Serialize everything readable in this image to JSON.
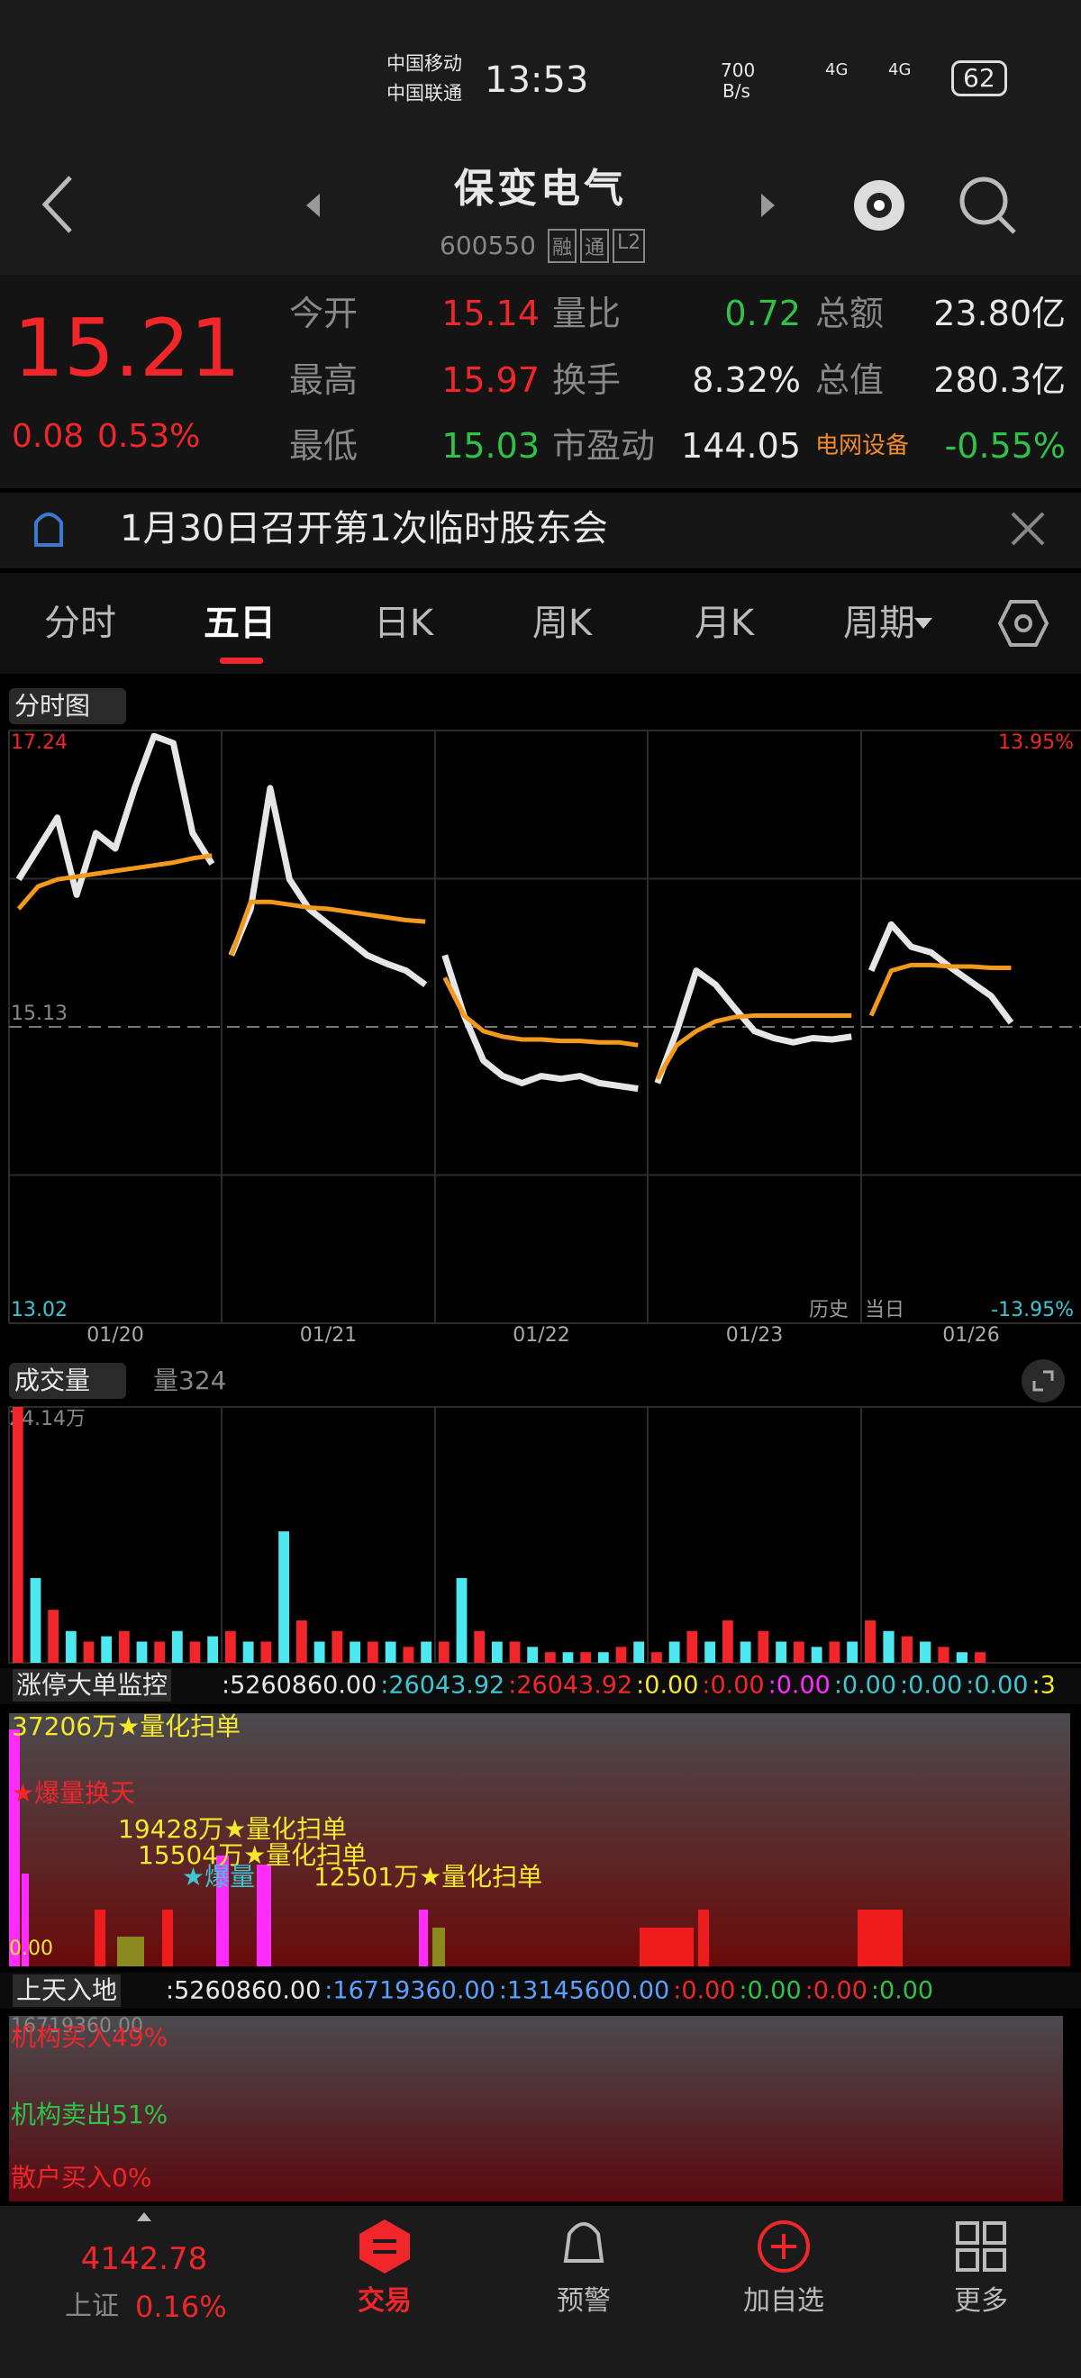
{
  "status": {
    "carrier1": "中国移动",
    "carrier2": "中国联通",
    "time": "13:53",
    "speed": "700",
    "speed_unit": "B/s",
    "net1": "4G",
    "net2": "4G",
    "battery": "62"
  },
  "header": {
    "title": "保变电气",
    "code": "600550",
    "badges": [
      "融",
      "通",
      "L2"
    ]
  },
  "quote": {
    "price": "15.21",
    "change": "0.08",
    "change_pct": "0.53%",
    "rows": [
      [
        "今开",
        "15.14",
        "量比",
        "0.72",
        "总额",
        "23.80亿"
      ],
      [
        "最高",
        "15.97",
        "换手",
        "8.32%",
        "总值",
        "280.3亿"
      ],
      [
        "最低",
        "15.03",
        "市盈动",
        "144.05",
        "电网设备",
        "-0.55%"
      ]
    ]
  },
  "notice": "1月30日召开第1次临时股东会",
  "tabs": [
    "分时",
    "五日",
    "日K",
    "周K",
    "月K",
    "周期"
  ],
  "price_chart": {
    "type": "line",
    "label": "分时图",
    "ylim": [
      13.02,
      17.24
    ],
    "yticks": [
      17.24,
      15.13,
      13.02
    ],
    "pct_ticks": [
      {
        "value": 17.24,
        "label": "13.95%"
      },
      {
        "value": 13.02,
        "label": "-13.95%"
      }
    ],
    "legend": [
      "历史",
      "当日"
    ],
    "price_color": "#e6e6e6",
    "avg_color": "#f39a1e",
    "days": [
      {
        "label": "01/20",
        "price": [
          16.18,
          16.4,
          16.62,
          16.07,
          16.51,
          16.4,
          16.83,
          17.2,
          17.15,
          16.51,
          16.29
        ],
        "avg": [
          15.97,
          16.13,
          16.18,
          16.2,
          16.22,
          16.24,
          16.26,
          16.28,
          16.3,
          16.33,
          16.35
        ]
      },
      {
        "label": "01/21",
        "price": [
          15.64,
          15.97,
          16.83,
          16.18,
          15.97,
          15.86,
          15.75,
          15.64,
          15.58,
          15.53,
          15.43
        ],
        "avg": [
          15.64,
          16.02,
          16.02,
          16.0,
          15.98,
          15.97,
          15.95,
          15.93,
          15.91,
          15.89,
          15.88
        ]
      },
      {
        "label": "01/22",
        "price": [
          15.64,
          15.21,
          14.89,
          14.78,
          14.73,
          14.78,
          14.76,
          14.78,
          14.73,
          14.71,
          14.69
        ],
        "avg": [
          15.48,
          15.21,
          15.1,
          15.06,
          15.04,
          15.04,
          15.03,
          15.03,
          15.02,
          15.02,
          15.0
        ]
      },
      {
        "label": "01/23",
        "price": [
          14.73,
          15.1,
          15.53,
          15.43,
          15.26,
          15.1,
          15.05,
          15.02,
          15.05,
          15.04,
          15.06
        ],
        "avg": [
          14.76,
          15.0,
          15.1,
          15.17,
          15.2,
          15.21,
          15.21,
          15.21,
          15.21,
          15.21,
          15.21
        ]
      },
      {
        "label": "01/26",
        "price": [
          15.53,
          15.86,
          15.7,
          15.66,
          15.55,
          15.45,
          15.35,
          15.16
        ],
        "avg": [
          15.21,
          15.53,
          15.57,
          15.57,
          15.56,
          15.56,
          15.55,
          15.55
        ]
      }
    ]
  },
  "volume_chart": {
    "type": "bar",
    "label": "成交量",
    "indicator": "量324",
    "ylim": [
      0,
      24.14
    ],
    "yticks": [
      {
        "value": 24.14,
        "label": "24.14万"
      }
    ],
    "colors": [
      "#f0262b",
      "#4de8f0"
    ],
    "days": [
      [
        24.14,
        8,
        5,
        3,
        2,
        2.5,
        3,
        2,
        2,
        3,
        2,
        2.5
      ],
      [
        3,
        2,
        2,
        12.4,
        4,
        2,
        3,
        2,
        2,
        2,
        1.5,
        2
      ],
      [
        2,
        8,
        3,
        2,
        2,
        1.5,
        1,
        1,
        1,
        1,
        1.5,
        2
      ],
      [
        1,
        2,
        3,
        2,
        4,
        2,
        3,
        2,
        2,
        1.5,
        2,
        2
      ],
      [
        4,
        3,
        2.5,
        2,
        1.5,
        1,
        1
      ]
    ]
  },
  "monitor": {
    "label": "涨停大单监控",
    "values": [
      ":5260860.00",
      ":26043.92",
      ":26043.92",
      ":0.00",
      ":0.00",
      ":0.00",
      ":0.00",
      ":0.00",
      ":0.00",
      ":3"
    ],
    "annotations": [
      "37206万★量化扫单",
      "★爆量换天",
      "19428万★量化扫单",
      "15504万★量化扫单",
      "★爆量",
      "12501万★量化扫单"
    ],
    "zero": "0.00"
  },
  "flow": {
    "label": "上天入地",
    "values": [
      ":5260860.00",
      ":16719360.00",
      ":13145600.00",
      ":0.00",
      ":0.00",
      ":0.00",
      ":0.00"
    ],
    "top": "16719360.00",
    "lines": [
      "机构买入49%",
      "机构卖出51%",
      "散户买入0%"
    ]
  },
  "nav": {
    "index": "4142.78",
    "index_name": "上证",
    "index_pct": "0.16%",
    "items": [
      "交易",
      "预警",
      "加自选",
      "更多"
    ]
  }
}
